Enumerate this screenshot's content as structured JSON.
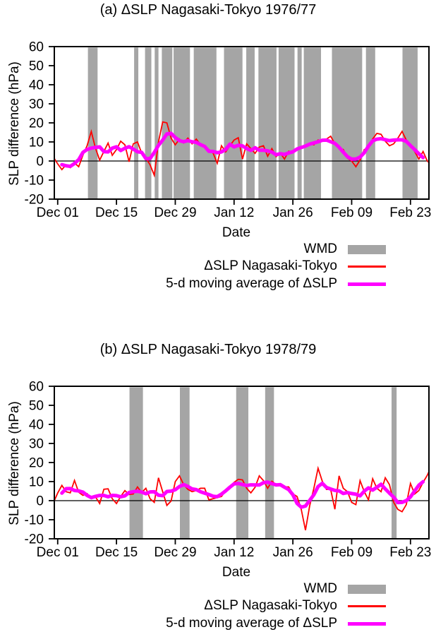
{
  "shared": {
    "ylabel": "SLP difference (hPa)",
    "xlabel": "Date",
    "legend": [
      {
        "label": "WMD",
        "swatch": "band",
        "color": "#a5a5a5"
      },
      {
        "label": "ΔSLP Nagasaki-Tokyo",
        "swatch": "line",
        "color": "#ff0000"
      },
      {
        "label": "5-d moving average of ΔSLP",
        "swatch": "thick-line",
        "color": "#ff00ff"
      }
    ],
    "colors": {
      "wmd_band": "#a5a5a5",
      "slp_line": "#ff0000",
      "ma_line": "#ff00ff",
      "axis": "#000000",
      "zero_line": "#000000",
      "background": "#ffffff"
    }
  },
  "chart_data": [
    {
      "type": "line",
      "title": "(a) ΔSLP Nagasaki-Tokyo 1976/77",
      "xlabel": "Date",
      "ylabel": "SLP difference (hPa)",
      "ylim": [
        -20,
        60
      ],
      "y_ticks": [
        60,
        50,
        40,
        30,
        20,
        10,
        0,
        -10,
        -20
      ],
      "zero_line": 0,
      "grid": false,
      "legend_position": "below-right",
      "x_axis": {
        "unit": "day",
        "day_zero_label": "Dec 01",
        "xlim": [
          -0.8,
          88.4
        ],
        "tick_days": [
          0,
          14,
          28,
          42,
          56,
          70,
          84
        ],
        "tick_labels": [
          "Dec 01",
          "Dec 15",
          "Dec 29",
          "Jan 12",
          "Jan 26",
          "Feb 09",
          "Feb 23"
        ]
      },
      "series": [
        {
          "name": "ΔSLP Nagasaki-Tokyo",
          "color": "#ff0000",
          "style": "thin",
          "x_start": -1,
          "x_step": 1,
          "values": [
            2,
            -1.5,
            -4.5,
            -2,
            -3.5,
            -1,
            -3,
            3,
            8,
            15.5,
            6.7,
            0.5,
            5,
            9.4,
            3,
            6,
            10.4,
            8.5,
            -0.4,
            9,
            10,
            4.2,
            1.5,
            -2,
            -7.5,
            10,
            20.5,
            20,
            12,
            8.5,
            11.5,
            9.5,
            12,
            9,
            11.5,
            8.5,
            8,
            6,
            4.2,
            -1.2,
            8,
            4.8,
            8,
            11,
            12.2,
            1,
            9,
            6.5,
            4,
            7.3,
            8,
            2.5,
            6.5,
            2.3,
            4.2,
            1,
            5.1,
            4.8,
            6,
            7.3,
            8.3,
            9.1,
            8.5,
            11,
            10.4,
            11.5,
            13,
            9,
            6.7,
            6,
            1.5,
            0,
            -3,
            0.5,
            6,
            6.7,
            11.6,
            14.5,
            14,
            10.4,
            8,
            9,
            12,
            15.5,
            11,
            8,
            5,
            1,
            5,
            0,
            -2
          ]
        },
        {
          "name": "5-d moving average of ΔSLP",
          "color": "#ff00ff",
          "style": "thick",
          "derived_from": "ΔSLP Nagasaki-Tokyo",
          "window": 5
        }
      ],
      "wmd_bands": {
        "color": "#a5a5a5",
        "unit": "day",
        "intervals": [
          [
            7.2,
            9.5
          ],
          [
            18.2,
            19.2
          ],
          [
            20.8,
            22.3
          ],
          [
            23.1,
            24.0
          ],
          [
            24.8,
            27.3
          ],
          [
            27.6,
            31.5
          ],
          [
            32.4,
            37.8
          ],
          [
            39.6,
            44.0
          ],
          [
            44.9,
            46.9
          ],
          [
            47.8,
            52.1
          ],
          [
            52.6,
            56.4
          ],
          [
            57.1,
            58.1
          ],
          [
            58.6,
            62.7
          ],
          [
            65.3,
            72.5
          ],
          [
            73.4,
            75.6
          ],
          [
            82.1,
            85.7
          ]
        ]
      }
    },
    {
      "type": "line",
      "title": "(b) ΔSLP Nagasaki-Tokyo 1978/79",
      "xlabel": "Date",
      "ylabel": "SLP difference (hPa)",
      "ylim": [
        -20,
        60
      ],
      "y_ticks": [
        60,
        50,
        40,
        30,
        20,
        10,
        0,
        -10,
        -20
      ],
      "zero_line": 0,
      "grid": false,
      "legend_position": "below-right",
      "x_axis": {
        "unit": "day",
        "day_zero_label": "Dec 01",
        "xlim": [
          -0.8,
          88.4
        ],
        "tick_days": [
          0,
          14,
          28,
          42,
          56,
          70,
          84
        ],
        "tick_labels": [
          "Dec 01",
          "Dec 15",
          "Dec 29",
          "Jan 12",
          "Jan 26",
          "Feb 09",
          "Feb 23"
        ]
      },
      "series": [
        {
          "name": "ΔSLP Nagasaki-Tokyo",
          "color": "#ff0000",
          "style": "thin",
          "x_start": -1,
          "x_step": 1,
          "values": [
            -1,
            4,
            8,
            4.7,
            4.1,
            10.6,
            4.4,
            2.8,
            3.7,
            1,
            2,
            -1.5,
            6,
            6.2,
            1,
            -1.5,
            2.2,
            5.3,
            3.2,
            3.5,
            7.2,
            4.3,
            6.5,
            1,
            -0.9,
            12,
            4.7,
            -2.5,
            -0.2,
            10,
            13,
            8.4,
            5.9,
            4.7,
            5.3,
            6.5,
            6.5,
            0.4,
            1,
            1.6,
            2.2,
            5.3,
            7,
            9.6,
            11.2,
            10.9,
            6.5,
            4.1,
            7,
            13,
            10.5,
            6.5,
            10.2,
            8.4,
            9,
            7.2,
            7.2,
            3.5,
            2.2,
            -4.6,
            -15.5,
            -2.7,
            6.5,
            17,
            10.2,
            5.9,
            5.9,
            -4.5,
            13,
            6.5,
            4.7,
            -0.9,
            -2.1,
            10.5,
            4.7,
            0.4,
            11.5,
            6.5,
            4.7,
            12,
            8.4,
            -0.9,
            -4.6,
            -5.8,
            -2.1,
            9,
            3.5,
            5.3,
            9.6,
            13.3,
            18
          ]
        },
        {
          "name": "5-d moving average of ΔSLP",
          "color": "#ff00ff",
          "style": "thick",
          "derived_from": "ΔSLP Nagasaki-Tokyo",
          "window": 5
        }
      ],
      "wmd_bands": {
        "color": "#a5a5a5",
        "unit": "day",
        "intervals": [
          [
            17.1,
            20.3
          ],
          [
            29.1,
            31.4
          ],
          [
            42.5,
            45.4
          ],
          [
            49.4,
            51.5
          ],
          [
            79.5,
            80.7
          ]
        ]
      }
    }
  ]
}
